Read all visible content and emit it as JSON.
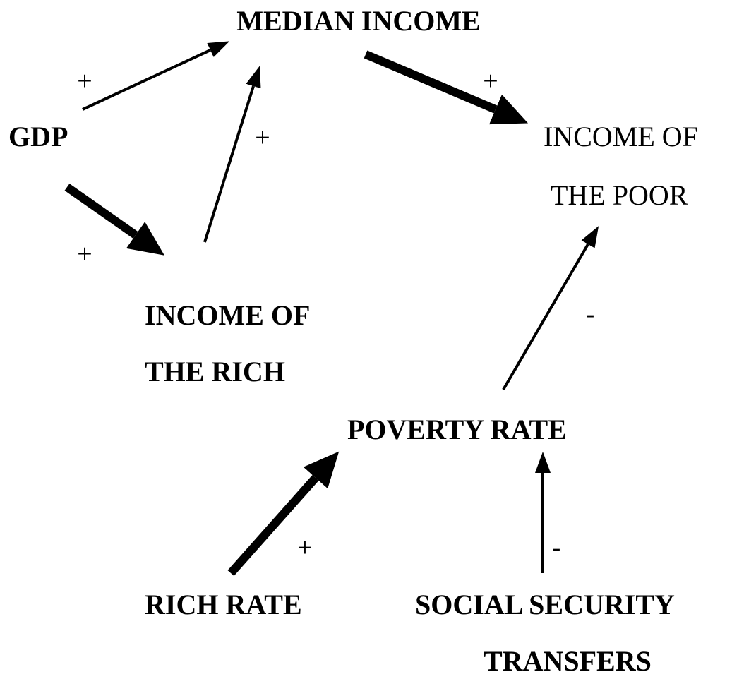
{
  "nodes": [
    {
      "lines": [
        "MEDIAN INCOME"
      ]
    },
    {
      "lines": [
        "GDP"
      ]
    },
    {
      "lines": [
        "INCOME OF",
        "THE POOR"
      ]
    },
    {
      "lines": [
        "INCOME OF",
        "THE RICH"
      ]
    },
    {
      "lines": [
        "POVERTY RATE"
      ]
    },
    {
      "lines": [
        "RICH RATE"
      ]
    },
    {
      "lines": [
        "SOCIAL SECURITY",
        "TRANSFERS"
      ]
    }
  ],
  "edges": [
    {
      "sign": "+"
    },
    {
      "sign": "+"
    },
    {
      "sign": "+"
    },
    {
      "sign": "+"
    },
    {
      "sign": "-"
    },
    {
      "sign": "+"
    },
    {
      "sign": "-"
    }
  ]
}
